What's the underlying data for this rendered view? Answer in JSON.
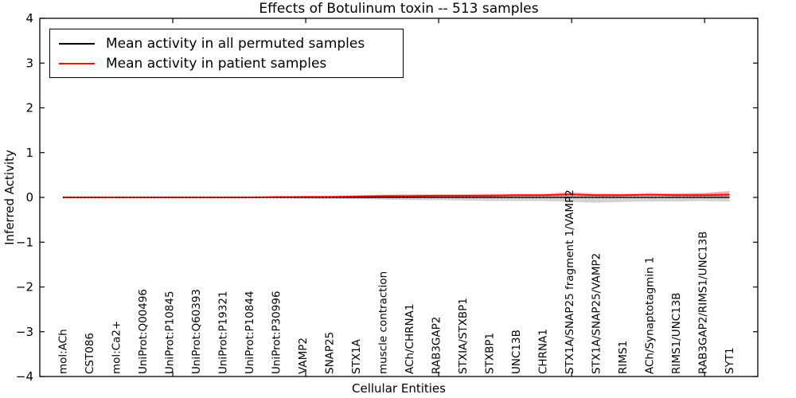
{
  "chart_data": {
    "type": "line",
    "title": "Effects of Botulinum toxin -- 513 samples",
    "xlabel": "Cellular Entities",
    "ylabel": "Inferred Activity",
    "ylim": [
      -4,
      4
    ],
    "yticks": [
      -4,
      -3,
      -2,
      -1,
      0,
      1,
      2,
      3,
      4
    ],
    "grid": false,
    "legend_position": "upper left",
    "zero_line": {
      "style": "dotted",
      "color": "#000000",
      "y": 0
    },
    "categories": [
      "mol:ACh",
      "CST086",
      "mol:Ca2+",
      "UniProt:Q00496",
      "UniProt:P10845",
      "UniProt:Q60393",
      "UniProt:P19321",
      "UniProt:P10844",
      "UniProt:P30996",
      "VAMP2",
      "SNAP25",
      "STX1A",
      "muscle contraction",
      "ACh/CHRNA1",
      "RAB3GAP2",
      "STXIA/STXBP1",
      "STXBP1",
      "UNC13B",
      "CHRNA1",
      "STX1A/SNAP25 fragment 1/VAMP2",
      "STX1A/SNAP25/VAMP2",
      "RIMS1",
      "ACh/Synaptotagmin 1",
      "RIMS1/UNC13B",
      "RAB3GAP2/RIMS1/UNC13B",
      "SYT1"
    ],
    "series": [
      {
        "name": "Mean activity in all permuted samples",
        "color": "#000000",
        "band_color": "rgba(128,128,128,0.35)",
        "values": [
          0,
          0,
          0,
          0,
          0,
          0,
          0,
          0,
          0,
          0,
          0,
          0,
          0,
          0,
          0,
          0,
          0,
          0,
          0,
          0,
          0,
          0,
          0,
          0,
          0,
          0
        ],
        "band_upper": [
          0.02,
          0.02,
          0.02,
          0.02,
          0.02,
          0.02,
          0.02,
          0.02,
          0.02,
          0.03,
          0.03,
          0.04,
          0.05,
          0.05,
          0.05,
          0.05,
          0.06,
          0.06,
          0.06,
          0.06,
          0.05,
          0.06,
          0.08,
          0.09,
          0.1,
          0.11
        ],
        "band_lower": [
          -0.02,
          -0.02,
          -0.02,
          -0.02,
          -0.02,
          -0.02,
          -0.02,
          -0.02,
          -0.02,
          -0.03,
          -0.04,
          -0.04,
          -0.05,
          -0.06,
          -0.06,
          -0.07,
          -0.08,
          -0.08,
          -0.08,
          -0.1,
          -0.12,
          -0.1,
          -0.09,
          -0.09,
          -0.08,
          -0.09
        ]
      },
      {
        "name": "Mean activity in patient samples",
        "color": "#ff0000",
        "band_color": "rgba(255,0,0,0.25)",
        "values": [
          0,
          0,
          0,
          0,
          0,
          0,
          0,
          0,
          0.01,
          0.01,
          0.01,
          0.02,
          0.03,
          0.03,
          0.04,
          0.04,
          0.04,
          0.05,
          0.05,
          0.07,
          0.05,
          0.05,
          0.06,
          0.05,
          0.05,
          0.06
        ],
        "band_upper": [
          0.02,
          0.02,
          0.02,
          0.02,
          0.02,
          0.02,
          0.02,
          0.02,
          0.02,
          0.03,
          0.04,
          0.05,
          0.06,
          0.07,
          0.07,
          0.07,
          0.08,
          0.08,
          0.08,
          0.12,
          0.09,
          0.08,
          0.1,
          0.08,
          0.09,
          0.15
        ],
        "band_lower": [
          -0.02,
          -0.02,
          -0.02,
          -0.02,
          -0.02,
          -0.02,
          -0.02,
          -0.02,
          -0.01,
          -0.01,
          -0.01,
          0,
          0,
          0,
          0,
          0.01,
          0.01,
          0.01,
          0.01,
          0.02,
          0.01,
          0.02,
          0.03,
          0.02,
          0.01,
          0
        ]
      }
    ]
  }
}
